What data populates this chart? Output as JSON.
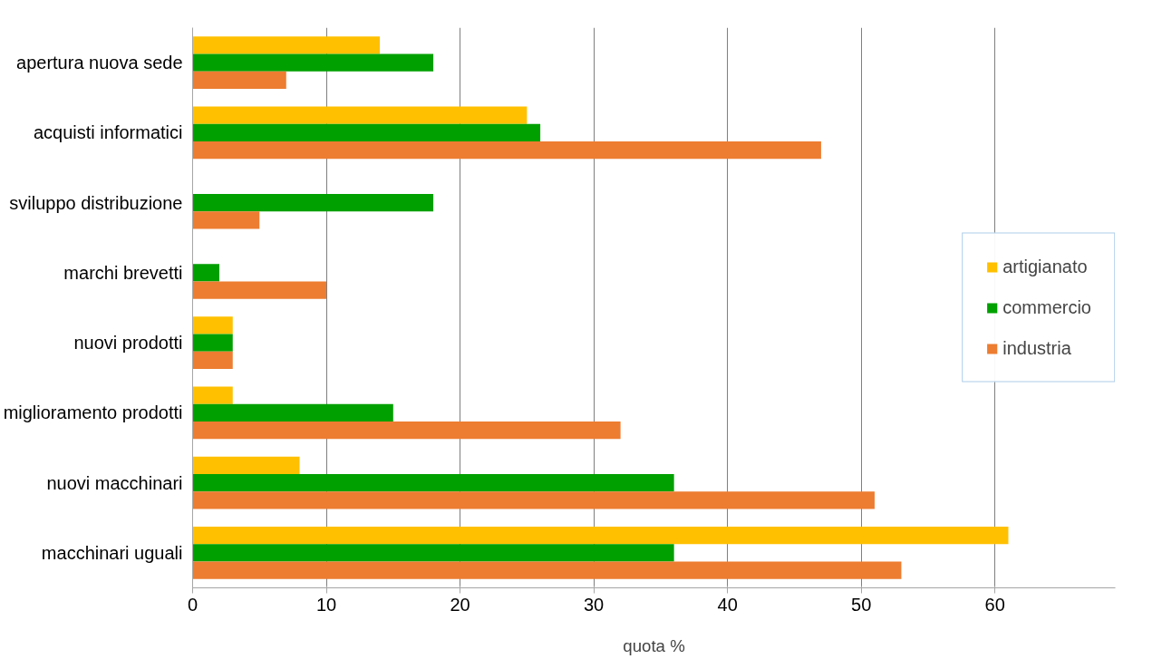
{
  "chart_data": {
    "type": "bar",
    "orientation": "horizontal",
    "xlabel": "quota %",
    "categories": [
      "apertura nuova sede",
      "acquisti informatici",
      "sviluppo distribuzione",
      "marchi brevetti",
      "nuovi prodotti",
      "miglioramento prodotti",
      "nuovi macchinari",
      "macchinari uguali"
    ],
    "series": [
      {
        "name": "artigianato",
        "color": "#ffc000",
        "values": [
          14,
          25,
          null,
          null,
          3,
          3,
          8,
          61
        ]
      },
      {
        "name": "commercio",
        "color": "#00a000",
        "values": [
          18,
          26,
          18,
          2,
          3,
          15,
          36,
          36
        ]
      },
      {
        "name": "industria",
        "color": "#ed7d31",
        "values": [
          7,
          47,
          5,
          10,
          3,
          32,
          51,
          53
        ]
      }
    ],
    "xlim": [
      0,
      69
    ],
    "xticks": [
      0,
      10,
      20,
      30,
      40,
      50,
      60
    ],
    "grid": "x",
    "legend": "right"
  }
}
